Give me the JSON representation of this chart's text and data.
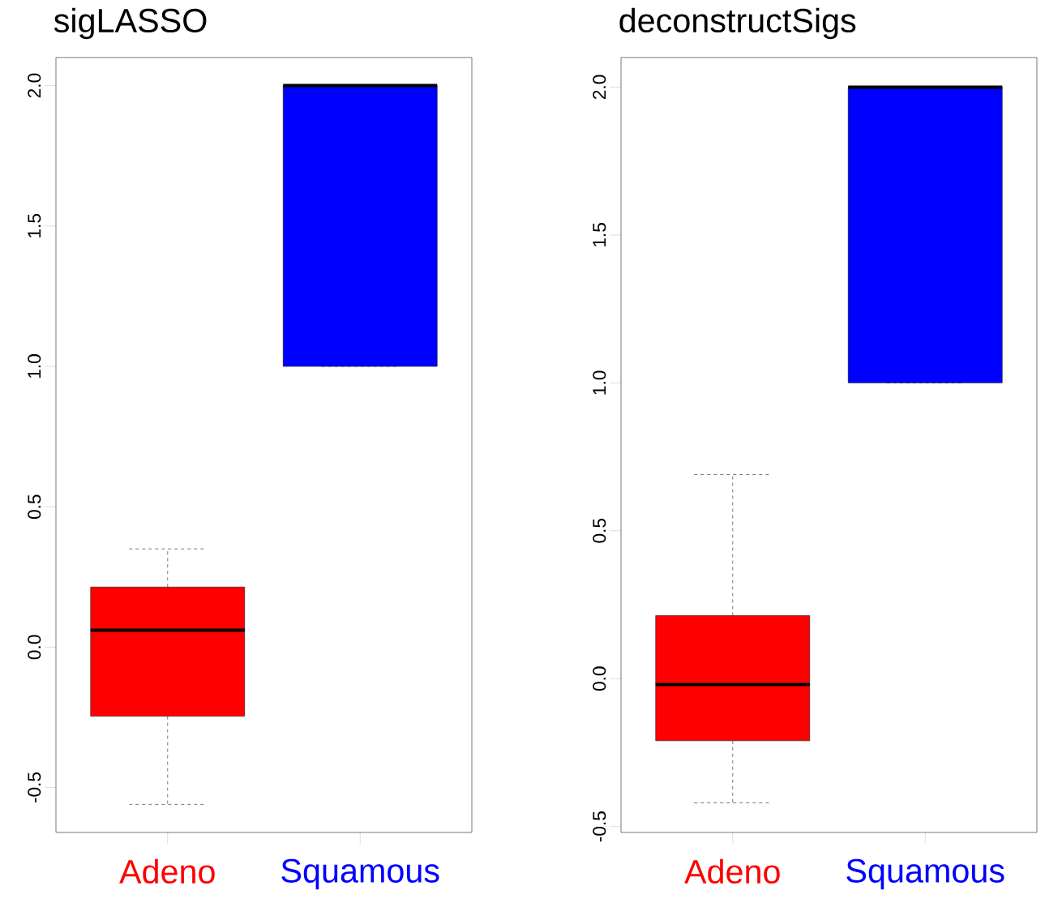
{
  "chart_data": [
    {
      "type": "box",
      "title": "sigLASSO",
      "categories": [
        "Adeno",
        "Squamous"
      ],
      "colors": [
        "#ff0000",
        "#0000ff"
      ],
      "boxes": [
        {
          "low": -0.56,
          "q1": -0.246,
          "median": 0.06,
          "q3": 0.214,
          "high": 0.35
        },
        {
          "low": 1.0,
          "q1": 1.0,
          "median": 2.0,
          "q3": 2.0,
          "high": 2.0
        }
      ],
      "ylim": [
        -0.66,
        2.1
      ],
      "yticks": [
        -0.5,
        {
          "value": 0,
          "label": "0.0"
        },
        0.5,
        {
          "value": 1,
          "label": "1.0"
        },
        1.5,
        {
          "value": 2,
          "label": "2.0"
        }
      ]
    },
    {
      "type": "box",
      "title": "deconstructSigs",
      "categories": [
        "Adeno",
        "Squamous"
      ],
      "colors": [
        "#ff0000",
        "#0000ff"
      ],
      "boxes": [
        {
          "low": -0.42,
          "q1": -0.21,
          "median": -0.02,
          "q3": 0.213,
          "high": 0.69
        },
        {
          "low": 1.0,
          "q1": 1.0,
          "median": 2.0,
          "q3": 2.0,
          "high": 2.0
        }
      ],
      "ylim": [
        -0.52,
        2.1
      ],
      "yticks": [
        -0.5,
        {
          "value": 0,
          "label": "0.0"
        },
        0.5,
        {
          "value": 1,
          "label": "1.0"
        },
        1.5,
        {
          "value": 2,
          "label": "2.0"
        }
      ]
    }
  ]
}
